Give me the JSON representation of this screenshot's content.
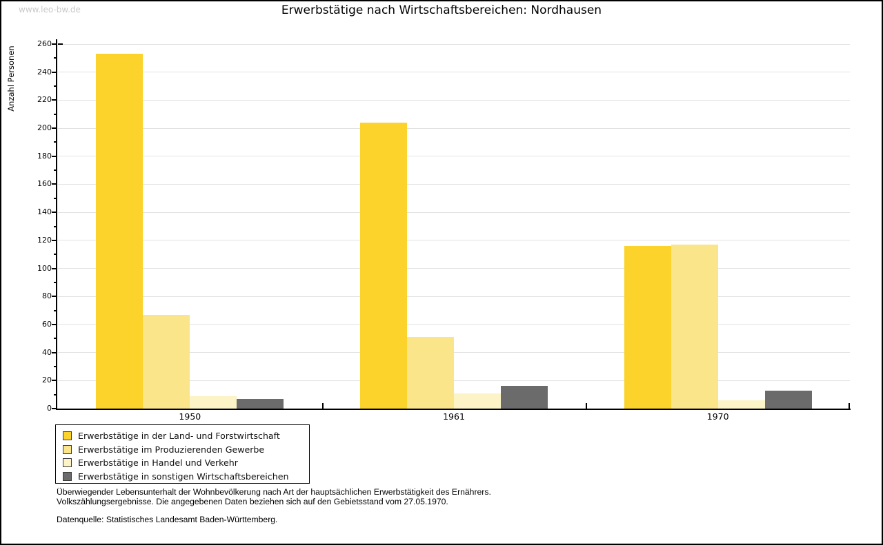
{
  "watermark": "www.leo-bw.de",
  "title": "Erwerbstätige nach Wirtschaftsbereichen: Nordhausen",
  "chart_data": {
    "type": "bar",
    "title": "Erwerbstätige nach Wirtschaftsbereichen: Nordhausen",
    "xlabel": "",
    "ylabel": "Anzahl Personen",
    "categories": [
      "1950",
      "1961",
      "1970"
    ],
    "series": [
      {
        "name": "Erwerbstätige in der Land- und Forstwirtschaft",
        "color": "#fbd32b",
        "values": [
          253,
          204,
          116
        ]
      },
      {
        "name": "Erwerbstätige im Produzierenden Gewerbe",
        "color": "#fae58a",
        "values": [
          67,
          51,
          117
        ]
      },
      {
        "name": "Erwerbstätige in Handel und Verkehr",
        "color": "#fcf3c6",
        "values": [
          9,
          11,
          6
        ]
      },
      {
        "name": "Erwerbstätige in sonstigen Wirtschaftsbereichen",
        "color": "#6b6b6b",
        "values": [
          7,
          16,
          13
        ]
      }
    ],
    "ylim": [
      0,
      260
    ],
    "ytick_step": 20,
    "minor_tick_step": 10,
    "grid": true,
    "gridline_color": "#e2e2e2",
    "legend_position": "bottom-left"
  },
  "footnote": {
    "line1": "Überwiegender Lebensunterhalt der Wohnbevölkerung nach Art der hauptsächlichen Erwerbstätigkeit des Ernährers.",
    "line2": "Volkszählungsergebnisse. Die angegebenen Daten beziehen sich auf den Gebietsstand vom 27.05.1970.",
    "source": "Datenquelle: Statistisches Landesamt Baden-Württemberg."
  }
}
